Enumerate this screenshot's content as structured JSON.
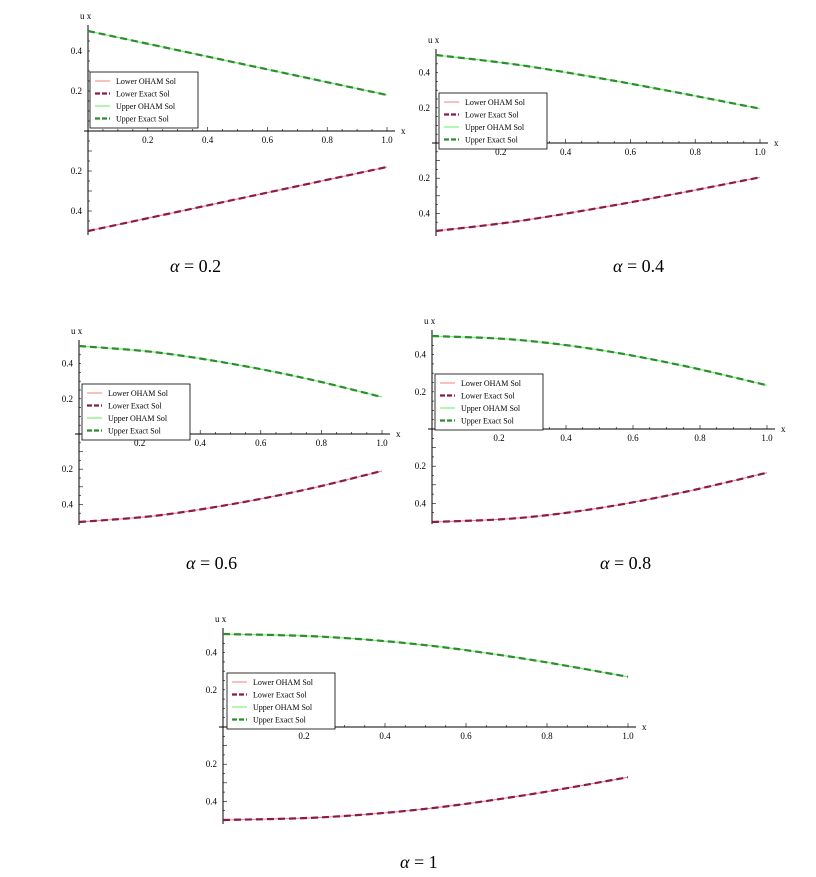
{
  "chart_data": [
    {
      "type": "line",
      "caption": {
        "symbol": "α",
        "text": "= 0.2"
      },
      "xlabel": "x",
      "ylabel": "u x",
      "xlim": [
        0,
        1.0
      ],
      "ylim": [
        -0.5,
        0.5
      ],
      "xticks": [
        "0.2",
        "0.4",
        "0.6",
        "0.8",
        "1.0"
      ],
      "yticks_upper": [
        "0.4",
        "0.2"
      ],
      "yticks_lower": [
        "0.2",
        "0.4"
      ],
      "legend": [
        "Lower OHAM Sol",
        "Lower Exact Sol",
        "Upper OHAM Sol",
        "Upper Exact Sol"
      ],
      "series": [
        {
          "name": "Lower OHAM Sol",
          "color": "#f08080",
          "x": [
            0,
            0.25,
            0.5,
            0.75,
            1.0
          ],
          "y": [
            -0.5,
            -0.42,
            -0.34,
            -0.26,
            -0.18
          ]
        },
        {
          "name": "Lower Exact Sol",
          "color": "#8b1a4a",
          "x": [
            0,
            0.25,
            0.5,
            0.75,
            1.0
          ],
          "y": [
            -0.5,
            -0.42,
            -0.34,
            -0.26,
            -0.18
          ]
        },
        {
          "name": "Upper OHAM Sol",
          "color": "#66ee66",
          "x": [
            0,
            0.25,
            0.5,
            0.75,
            1.0
          ],
          "y": [
            0.5,
            0.42,
            0.34,
            0.26,
            0.18
          ]
        },
        {
          "name": "Upper Exact Sol",
          "color": "#2e8b2e",
          "x": [
            0,
            0.25,
            0.5,
            0.75,
            1.0
          ],
          "y": [
            0.5,
            0.42,
            0.34,
            0.26,
            0.18
          ]
        }
      ]
    },
    {
      "type": "line",
      "caption": {
        "symbol": "α",
        "text": "= 0.4"
      },
      "xlabel": "x",
      "ylabel": "u x",
      "xlim": [
        0,
        1.0
      ],
      "ylim": [
        -0.5,
        0.5
      ],
      "xticks": [
        "0.2",
        "0.4",
        "0.6",
        "0.8",
        "1.0"
      ],
      "yticks_upper": [
        "0.4",
        "0.2"
      ],
      "yticks_lower": [
        "0.2",
        "0.4"
      ],
      "legend": [
        "Lower OHAM Sol",
        "Lower Exact Sol",
        "Upper OHAM Sol",
        "Upper Exact Sol"
      ],
      "series": [
        {
          "name": "Lower OHAM Sol",
          "color": "#f08080",
          "x": [
            0,
            0.25,
            0.5,
            0.75,
            1.0
          ],
          "y": [
            -0.5,
            -0.445,
            -0.37,
            -0.285,
            -0.195
          ]
        },
        {
          "name": "Lower Exact Sol",
          "color": "#8b1a4a",
          "x": [
            0,
            0.25,
            0.5,
            0.75,
            1.0
          ],
          "y": [
            -0.5,
            -0.445,
            -0.37,
            -0.285,
            -0.195
          ]
        },
        {
          "name": "Upper OHAM Sol",
          "color": "#66ee66",
          "x": [
            0,
            0.25,
            0.5,
            0.75,
            1.0
          ],
          "y": [
            0.5,
            0.445,
            0.37,
            0.285,
            0.195
          ]
        },
        {
          "name": "Upper Exact Sol",
          "color": "#2e8b2e",
          "x": [
            0,
            0.25,
            0.5,
            0.75,
            1.0
          ],
          "y": [
            0.5,
            0.445,
            0.37,
            0.285,
            0.195
          ]
        }
      ]
    },
    {
      "type": "line",
      "caption": {
        "symbol": "α",
        "text": "= 0.6"
      },
      "xlabel": "x",
      "ylabel": "u x",
      "xlim": [
        0,
        1.0
      ],
      "ylim": [
        -0.5,
        0.5
      ],
      "xticks": [
        "0.2",
        "0.4",
        "0.6",
        "0.8",
        "1.0"
      ],
      "yticks_upper": [
        "0.4",
        "0.2"
      ],
      "yticks_lower": [
        "0.2",
        "0.4"
      ],
      "legend": [
        "Lower OHAM Sol",
        "Lower Exact Sol",
        "Upper OHAM Sol",
        "Upper Exact Sol"
      ],
      "series": [
        {
          "name": "Lower OHAM Sol",
          "color": "#f08080",
          "x": [
            0,
            0.25,
            0.5,
            0.75,
            1.0
          ],
          "y": [
            -0.5,
            -0.465,
            -0.4,
            -0.315,
            -0.21
          ]
        },
        {
          "name": "Lower Exact Sol",
          "color": "#8b1a4a",
          "x": [
            0,
            0.25,
            0.5,
            0.75,
            1.0
          ],
          "y": [
            -0.5,
            -0.465,
            -0.4,
            -0.315,
            -0.21
          ]
        },
        {
          "name": "Upper OHAM Sol",
          "color": "#66ee66",
          "x": [
            0,
            0.25,
            0.5,
            0.75,
            1.0
          ],
          "y": [
            0.5,
            0.465,
            0.4,
            0.315,
            0.21
          ]
        },
        {
          "name": "Upper Exact Sol",
          "color": "#2e8b2e",
          "x": [
            0,
            0.25,
            0.5,
            0.75,
            1.0
          ],
          "y": [
            0.5,
            0.465,
            0.4,
            0.315,
            0.21
          ]
        }
      ]
    },
    {
      "type": "line",
      "caption": {
        "symbol": "α",
        "text": "= 0.8"
      },
      "xlabel": "x",
      "ylabel": "u x",
      "xlim": [
        0,
        1.0
      ],
      "ylim": [
        -0.5,
        0.5
      ],
      "xticks": [
        "0.2",
        "0.4",
        "0.6",
        "0.8",
        "1.0"
      ],
      "yticks_upper": [
        "0.4",
        "0.2"
      ],
      "yticks_lower": [
        "0.2",
        "0.4"
      ],
      "legend": [
        "Lower OHAM Sol",
        "Lower Exact Sol",
        "Upper OHAM Sol",
        "Upper Exact Sol"
      ],
      "series": [
        {
          "name": "Lower OHAM Sol",
          "color": "#f08080",
          "x": [
            0,
            0.25,
            0.5,
            0.75,
            1.0
          ],
          "y": [
            -0.5,
            -0.48,
            -0.425,
            -0.34,
            -0.235
          ]
        },
        {
          "name": "Lower Exact Sol",
          "color": "#8b1a4a",
          "x": [
            0,
            0.25,
            0.5,
            0.75,
            1.0
          ],
          "y": [
            -0.5,
            -0.48,
            -0.425,
            -0.34,
            -0.235
          ]
        },
        {
          "name": "Upper OHAM Sol",
          "color": "#66ee66",
          "x": [
            0,
            0.25,
            0.5,
            0.75,
            1.0
          ],
          "y": [
            0.5,
            0.48,
            0.425,
            0.34,
            0.235
          ]
        },
        {
          "name": "Upper Exact Sol",
          "color": "#2e8b2e",
          "x": [
            0,
            0.25,
            0.5,
            0.75,
            1.0
          ],
          "y": [
            0.5,
            0.48,
            0.425,
            0.34,
            0.235
          ]
        }
      ]
    },
    {
      "type": "line",
      "caption": {
        "symbol": "α",
        "text": "= 1"
      },
      "xlabel": "x",
      "ylabel": "u x",
      "xlim": [
        0,
        1.0
      ],
      "ylim": [
        -0.5,
        0.5
      ],
      "xticks": [
        "0.2",
        "0.4",
        "0.6",
        "0.8",
        "1.0"
      ],
      "yticks_upper": [
        "0.4",
        "0.2"
      ],
      "yticks_lower": [
        "0.2",
        "0.4"
      ],
      "legend": [
        "Lower OHAM Sol",
        "Lower Exact Sol",
        "Upper OHAM Sol",
        "Upper Exact Sol"
      ],
      "series": [
        {
          "name": "Lower OHAM Sol",
          "color": "#f08080",
          "x": [
            0,
            0.25,
            0.5,
            0.75,
            1.0
          ],
          "y": [
            -0.5,
            -0.485,
            -0.44,
            -0.365,
            -0.27
          ]
        },
        {
          "name": "Lower Exact Sol",
          "color": "#8b1a4a",
          "x": [
            0,
            0.25,
            0.5,
            0.75,
            1.0
          ],
          "y": [
            -0.5,
            -0.485,
            -0.44,
            -0.365,
            -0.27
          ]
        },
        {
          "name": "Upper OHAM Sol",
          "color": "#66ee66",
          "x": [
            0,
            0.25,
            0.5,
            0.75,
            1.0
          ],
          "y": [
            0.5,
            0.485,
            0.44,
            0.365,
            0.27
          ]
        },
        {
          "name": "Upper Exact Sol",
          "color": "#2e8b2e",
          "x": [
            0,
            0.25,
            0.5,
            0.75,
            1.0
          ],
          "y": [
            0.5,
            0.485,
            0.44,
            0.365,
            0.27
          ]
        }
      ]
    }
  ]
}
